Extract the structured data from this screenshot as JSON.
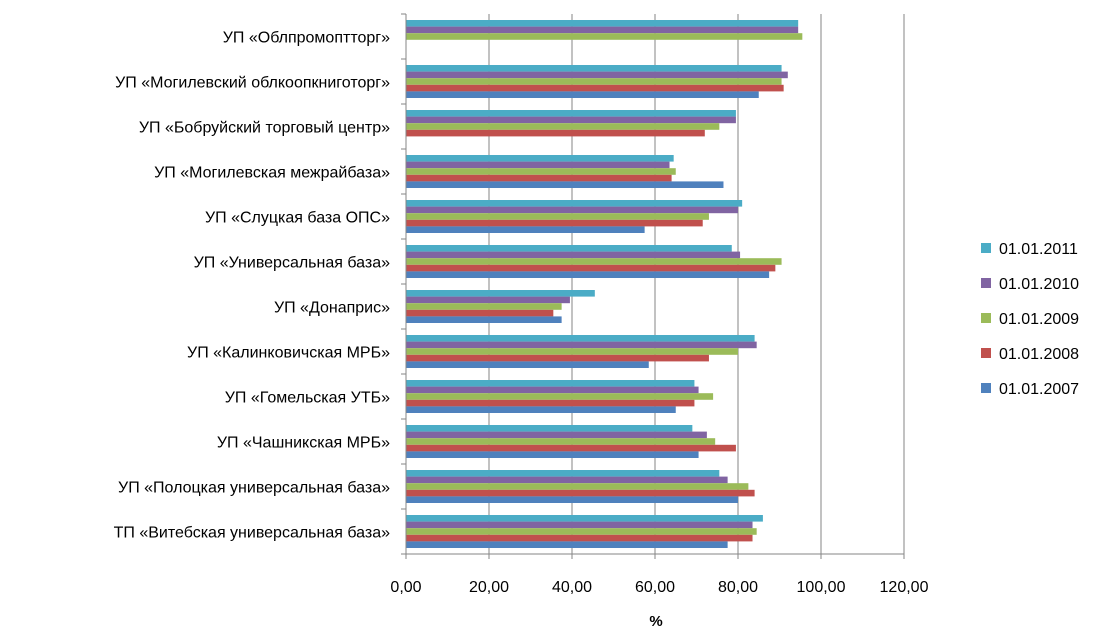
{
  "chart_data": {
    "type": "bar",
    "orientation": "horizontal",
    "title": "",
    "xlabel": "%",
    "ylabel": "",
    "xlim": [
      0,
      120
    ],
    "x_ticks": [
      0,
      20,
      40,
      60,
      80,
      100,
      120
    ],
    "x_tick_labels": [
      "0,00",
      "20,00",
      "40,00",
      "60,00",
      "80,00",
      "100,00",
      "120,00"
    ],
    "grid": "vertical",
    "legend_position": "right",
    "categories": [
      "УП «Облпромоптторг»",
      "УП «Могилевский облкоопкниготорг»",
      "УП «Бобруйский торговый центр»",
      "УП «Могилевская межрайбаза»",
      "УП «Слуцкая база ОПС»",
      "УП «Универсальная база»",
      "УП «Донаприс»",
      "УП «Калинковичская МРБ»",
      "УП «Гомельская УТБ»",
      "УП «Чашникская МРБ»",
      "УП «Полоцкая универсальная база»",
      "ТП «Витебская универсальная база»"
    ],
    "series": [
      {
        "name": "01.01.2011",
        "color": "#4BACC6",
        "values": [
          94.5,
          90.5,
          79.5,
          64.5,
          81.0,
          78.5,
          45.5,
          84.0,
          69.5,
          69.0,
          75.5,
          86.0
        ]
      },
      {
        "name": "01.01.2010",
        "color": "#8064A2",
        "values": [
          94.5,
          92.0,
          79.5,
          63.5,
          80.0,
          80.5,
          39.5,
          84.5,
          70.5,
          72.5,
          77.5,
          83.5
        ]
      },
      {
        "name": "01.01.2009",
        "color": "#9BBB59",
        "values": [
          95.5,
          90.5,
          75.5,
          65.0,
          73.0,
          90.5,
          37.5,
          80.0,
          74.0,
          74.5,
          82.5,
          84.5
        ]
      },
      {
        "name": "01.01.2008",
        "color": "#C0504D",
        "values": [
          0,
          91.0,
          72.0,
          64.0,
          71.5,
          89.0,
          35.5,
          73.0,
          69.5,
          79.5,
          84.0,
          83.5
        ]
      },
      {
        "name": "01.01.2007",
        "color": "#4F81BD",
        "values": [
          0,
          85.0,
          0,
          76.5,
          57.5,
          87.5,
          37.5,
          58.5,
          65.0,
          70.5,
          80.0,
          77.5
        ]
      }
    ]
  }
}
